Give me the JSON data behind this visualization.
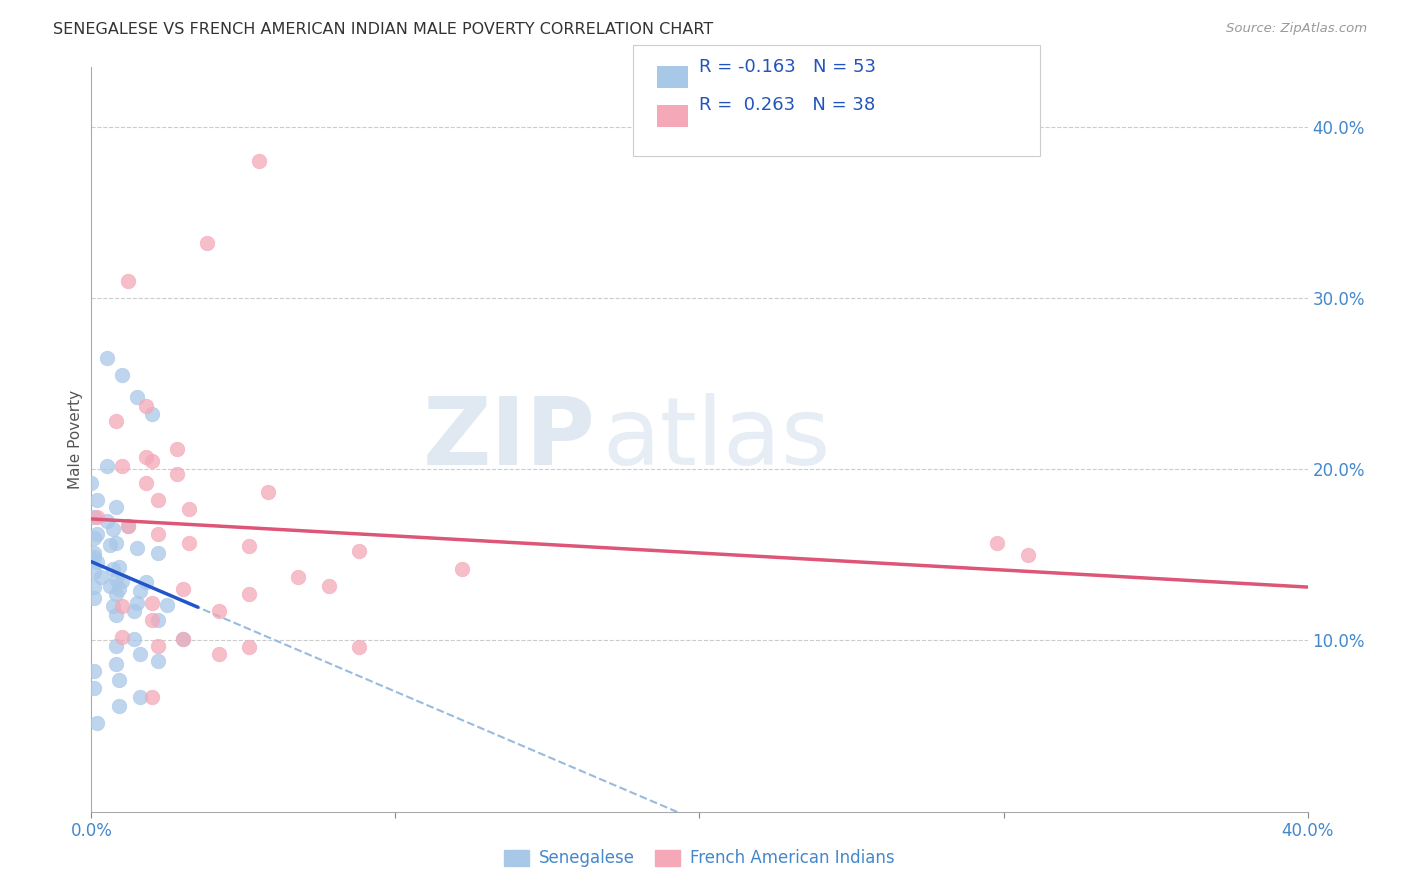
{
  "title": "SENEGALESE VS FRENCH AMERICAN INDIAN MALE POVERTY CORRELATION CHART",
  "source": "Source: ZipAtlas.com",
  "ylabel": "Male Poverty",
  "right_yticks": [
    "40.0%",
    "30.0%",
    "20.0%",
    "10.0%"
  ],
  "right_ytick_vals": [
    0.4,
    0.3,
    0.2,
    0.1
  ],
  "xlim": [
    0.0,
    0.4
  ],
  "ylim": [
    0.0,
    0.435
  ],
  "senegalese_color": "#a8c8e8",
  "french_color": "#f4a8b8",
  "senegalese_line_color": "#2255cc",
  "french_line_color": "#dd5577",
  "dashed_line_color": "#99bbdd",
  "watermark_zip": "ZIP",
  "watermark_atlas": "atlas",
  "legend_label_senegalese": "Senegalese",
  "legend_label_french": "French American Indians",
  "senegalese_x": [
    0.005,
    0.01,
    0.015,
    0.02,
    0.005,
    0.0,
    0.002,
    0.008,
    0.001,
    0.005,
    0.012,
    0.007,
    0.002,
    0.001,
    0.008,
    0.006,
    0.015,
    0.022,
    0.001,
    0.001,
    0.0,
    0.002,
    0.009,
    0.007,
    0.001,
    0.003,
    0.008,
    0.01,
    0.018,
    0.006,
    0.001,
    0.009,
    0.016,
    0.008,
    0.001,
    0.015,
    0.025,
    0.007,
    0.014,
    0.008,
    0.022,
    0.014,
    0.03,
    0.008,
    0.016,
    0.022,
    0.008,
    0.001,
    0.009,
    0.001,
    0.016,
    0.009,
    0.002
  ],
  "senegalese_y": [
    0.265,
    0.255,
    0.242,
    0.232,
    0.202,
    0.192,
    0.182,
    0.178,
    0.172,
    0.17,
    0.167,
    0.165,
    0.162,
    0.16,
    0.157,
    0.156,
    0.154,
    0.151,
    0.151,
    0.149,
    0.147,
    0.146,
    0.143,
    0.142,
    0.14,
    0.137,
    0.136,
    0.135,
    0.134,
    0.132,
    0.131,
    0.13,
    0.129,
    0.127,
    0.125,
    0.122,
    0.121,
    0.12,
    0.117,
    0.115,
    0.112,
    0.101,
    0.101,
    0.097,
    0.092,
    0.088,
    0.086,
    0.082,
    0.077,
    0.072,
    0.067,
    0.062,
    0.052
  ],
  "french_x": [
    0.055,
    0.038,
    0.012,
    0.018,
    0.008,
    0.028,
    0.018,
    0.02,
    0.01,
    0.028,
    0.018,
    0.058,
    0.022,
    0.032,
    0.002,
    0.012,
    0.022,
    0.032,
    0.052,
    0.088,
    0.308,
    0.122,
    0.068,
    0.078,
    0.03,
    0.052,
    0.02,
    0.01,
    0.042,
    0.02,
    0.01,
    0.03,
    0.022,
    0.052,
    0.088,
    0.042,
    0.02,
    0.298
  ],
  "french_y": [
    0.38,
    0.332,
    0.31,
    0.237,
    0.228,
    0.212,
    0.207,
    0.205,
    0.202,
    0.197,
    0.192,
    0.187,
    0.182,
    0.177,
    0.172,
    0.167,
    0.162,
    0.157,
    0.155,
    0.152,
    0.15,
    0.142,
    0.137,
    0.132,
    0.13,
    0.127,
    0.122,
    0.12,
    0.117,
    0.112,
    0.102,
    0.101,
    0.097,
    0.096,
    0.096,
    0.092,
    0.067,
    0.157
  ]
}
